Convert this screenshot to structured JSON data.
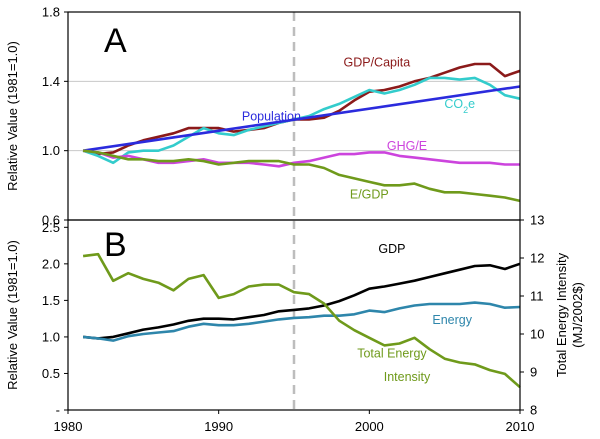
{
  "chart_data": [
    {
      "type": "line",
      "panel_label": "A",
      "title": "",
      "xlabel": "",
      "ylabel": "Relative Value (1981=1.0)",
      "xlim": [
        1980,
        2010
      ],
      "ylim": [
        0.6,
        1.8
      ],
      "yticks": [
        "0.6",
        "1.0",
        "1.4",
        "1.8"
      ],
      "grid": true,
      "reference_line": {
        "x": 1995,
        "style": "dashed"
      },
      "series": [
        {
          "name": "GDP/Capita",
          "color": "#8b1a1a",
          "x": [
            1981,
            1982,
            1983,
            1984,
            1985,
            1986,
            1987,
            1988,
            1989,
            1990,
            1991,
            1992,
            1993,
            1994,
            1995,
            1996,
            1997,
            1998,
            1999,
            2000,
            2001,
            2002,
            2003,
            2004,
            2005,
            2006,
            2007,
            2008,
            2009,
            2010
          ],
          "y": [
            1.0,
            0.98,
            0.99,
            1.03,
            1.06,
            1.08,
            1.1,
            1.13,
            1.13,
            1.13,
            1.11,
            1.12,
            1.13,
            1.16,
            1.18,
            1.18,
            1.19,
            1.23,
            1.29,
            1.34,
            1.35,
            1.37,
            1.4,
            1.42,
            1.45,
            1.48,
            1.5,
            1.5,
            1.43,
            1.46
          ]
        },
        {
          "name": "CO2e",
          "color": "#33cccc",
          "x": [
            1981,
            1982,
            1983,
            1984,
            1985,
            1986,
            1987,
            1988,
            1989,
            1990,
            1991,
            1992,
            1993,
            1994,
            1995,
            1996,
            1997,
            1998,
            1999,
            2000,
            2001,
            2002,
            2003,
            2004,
            2005,
            2006,
            2007,
            2008,
            2009,
            2010
          ],
          "y": [
            1.0,
            0.97,
            0.93,
            0.99,
            1.0,
            1.0,
            1.03,
            1.08,
            1.13,
            1.1,
            1.09,
            1.12,
            1.14,
            1.16,
            1.18,
            1.2,
            1.24,
            1.27,
            1.31,
            1.35,
            1.33,
            1.35,
            1.38,
            1.42,
            1.42,
            1.41,
            1.42,
            1.38,
            1.32,
            1.3
          ]
        },
        {
          "name": "Population",
          "color": "#2b2bdd",
          "x": [
            1981,
            2010
          ],
          "y": [
            1.0,
            1.37
          ]
        },
        {
          "name": "GHG/E",
          "color": "#cc44dd",
          "x": [
            1981,
            1982,
            1983,
            1984,
            1985,
            1986,
            1987,
            1988,
            1989,
            1990,
            1991,
            1992,
            1993,
            1994,
            1995,
            1996,
            1997,
            1998,
            1999,
            2000,
            2001,
            2002,
            2003,
            2004,
            2005,
            2006,
            2007,
            2008,
            2009,
            2010
          ],
          "y": [
            1.0,
            0.99,
            0.96,
            0.97,
            0.95,
            0.93,
            0.93,
            0.94,
            0.95,
            0.93,
            0.93,
            0.93,
            0.92,
            0.91,
            0.93,
            0.94,
            0.96,
            0.98,
            0.98,
            0.99,
            0.99,
            0.97,
            0.96,
            0.95,
            0.94,
            0.93,
            0.93,
            0.93,
            0.92,
            0.92
          ]
        },
        {
          "name": "E/GDP",
          "color": "#6f9a1b",
          "x": [
            1981,
            1982,
            1983,
            1984,
            1985,
            1986,
            1987,
            1988,
            1989,
            1990,
            1991,
            1992,
            1993,
            1994,
            1995,
            1996,
            1997,
            1998,
            1999,
            2000,
            2001,
            2002,
            2003,
            2004,
            2005,
            2006,
            2007,
            2008,
            2009,
            2010
          ],
          "y": [
            1.0,
            0.99,
            0.97,
            0.95,
            0.95,
            0.94,
            0.94,
            0.95,
            0.94,
            0.92,
            0.93,
            0.94,
            0.94,
            0.94,
            0.92,
            0.92,
            0.9,
            0.86,
            0.84,
            0.82,
            0.8,
            0.8,
            0.81,
            0.78,
            0.76,
            0.76,
            0.75,
            0.74,
            0.73,
            0.71
          ]
        }
      ],
      "labels": [
        {
          "series": "GDP/Capita",
          "text": "GDP/Capita",
          "x": 2000.5,
          "y": 1.485
        },
        {
          "series": "CO2e",
          "text": "CO",
          "sub": "2",
          "tail": "e",
          "x": 2006,
          "y": 1.245
        },
        {
          "series": "Population",
          "text": "Population",
          "x": 1993.5,
          "y": 1.175
        },
        {
          "series": "GHG/E",
          "text": "GHG/E",
          "x": 2002.5,
          "y": 1.005
        },
        {
          "series": "E/GDP",
          "text": "E/GDP",
          "x": 2000,
          "y": 0.725
        }
      ]
    },
    {
      "type": "line",
      "panel_label": "B",
      "title": "",
      "xlabel": "",
      "ylabel": "Relative Value (1981=1.0)",
      "y2label": "Total Energy Intensity (MJ/2002$)",
      "xlim": [
        1980,
        2010
      ],
      "xticks": [
        "1980",
        "1990",
        "2000",
        "2010"
      ],
      "ylim": [
        0,
        2.6
      ],
      "yticks": [
        "-",
        "0.5",
        "1.0",
        "1.5",
        "2.0",
        "2.5"
      ],
      "y2lim": [
        8,
        13
      ],
      "y2ticks": [
        "8",
        "9",
        "10",
        "11",
        "12",
        "13"
      ],
      "grid": false,
      "reference_line": {
        "x": 1995,
        "style": "dashed"
      },
      "series": [
        {
          "name": "GDP",
          "color": "#000000",
          "axis": "left",
          "x": [
            1981,
            1982,
            1983,
            1984,
            1985,
            1986,
            1987,
            1988,
            1989,
            1990,
            1991,
            1992,
            1993,
            1994,
            1995,
            1996,
            1997,
            1998,
            1999,
            2000,
            2001,
            2002,
            2003,
            2004,
            2005,
            2006,
            2007,
            2008,
            2009,
            2010
          ],
          "y": [
            1.0,
            0.98,
            1.0,
            1.05,
            1.1,
            1.13,
            1.17,
            1.22,
            1.25,
            1.25,
            1.24,
            1.27,
            1.3,
            1.35,
            1.37,
            1.39,
            1.43,
            1.49,
            1.57,
            1.66,
            1.69,
            1.73,
            1.77,
            1.82,
            1.87,
            1.92,
            1.97,
            1.98,
            1.93,
            2.0
          ]
        },
        {
          "name": "Energy",
          "color": "#2e86ab",
          "axis": "left",
          "x": [
            1981,
            1982,
            1983,
            1984,
            1985,
            1986,
            1987,
            1988,
            1989,
            1990,
            1991,
            1992,
            1993,
            1994,
            1995,
            1996,
            1997,
            1998,
            1999,
            2000,
            2001,
            2002,
            2003,
            2004,
            2005,
            2006,
            2007,
            2008,
            2009,
            2010
          ],
          "y": [
            1.0,
            0.98,
            0.95,
            1.01,
            1.04,
            1.06,
            1.08,
            1.14,
            1.18,
            1.16,
            1.16,
            1.18,
            1.21,
            1.24,
            1.26,
            1.27,
            1.29,
            1.29,
            1.31,
            1.36,
            1.34,
            1.39,
            1.43,
            1.45,
            1.45,
            1.45,
            1.47,
            1.45,
            1.4,
            1.41
          ]
        },
        {
          "name": "Total Energy Intensity",
          "color": "#6f9a1b",
          "axis": "right",
          "x": [
            1981,
            1982,
            1983,
            1984,
            1985,
            1986,
            1987,
            1988,
            1989,
            1990,
            1991,
            1992,
            1993,
            1994,
            1995,
            1996,
            1997,
            1998,
            1999,
            2000,
            2001,
            2002,
            2003,
            2004,
            2005,
            2006,
            2007,
            2008,
            2009,
            2010
          ],
          "y": [
            12.05,
            12.1,
            11.4,
            11.6,
            11.45,
            11.35,
            11.15,
            11.45,
            11.55,
            10.95,
            11.05,
            11.25,
            11.3,
            11.3,
            11.1,
            11.05,
            10.8,
            10.35,
            10.1,
            9.9,
            9.7,
            9.75,
            9.9,
            9.6,
            9.35,
            9.25,
            9.2,
            9.05,
            8.95,
            8.6
          ]
        }
      ],
      "labels": [
        {
          "series": "GDP",
          "text": "GDP",
          "x": 2001.5,
          "y": 2.15
        },
        {
          "series": "Energy",
          "text": "Energy",
          "x": 2005.5,
          "y": 1.18
        },
        {
          "series": "Total Energy Intensity",
          "text": "Total Energy",
          "x": 2001.5,
          "y": 0.72
        },
        {
          "series": "Total Energy Intensity",
          "text": "Intensity",
          "x": 2002.5,
          "y": 0.4
        }
      ]
    }
  ]
}
